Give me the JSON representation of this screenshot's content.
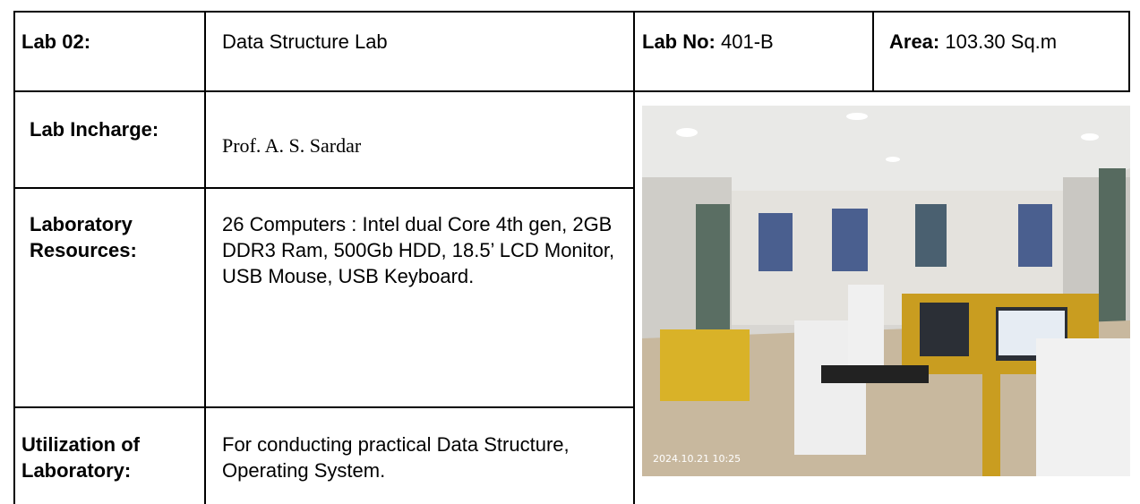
{
  "table": {
    "rows": [
      {
        "label": "Lab 02:",
        "text": "Data Structure Lab",
        "lab_no_label": "Lab No:",
        "lab_no": "401-B",
        "area_label": "Area:",
        "area": "103.30 Sq.m"
      },
      {
        "label": "Lab Incharge:",
        "text": "Prof. A. S. Sardar"
      },
      {
        "label": "Laboratory Resources:",
        "text": "26 Computers : Intel dual Core 4th gen, 2GB DDR3 Ram, 500Gb HDD, 18.5’ LCD Monitor, USB Mouse, USB Keyboard."
      },
      {
        "label": "Utilization of Laboratory:",
        "text": "For conducting practical Data Structure, Operating System."
      }
    ]
  },
  "photo": {
    "timestamp": "2024.10.21 10:25"
  }
}
